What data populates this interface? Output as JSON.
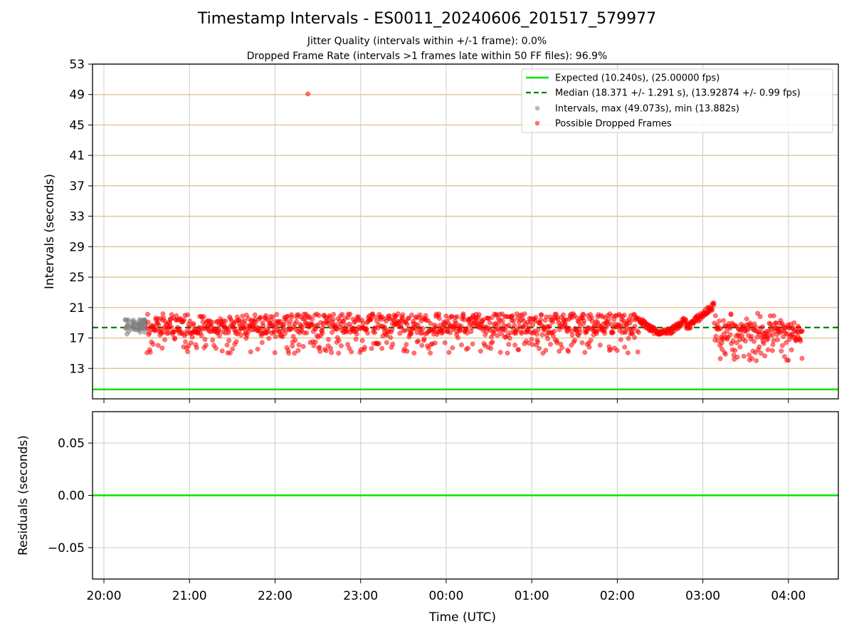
{
  "chart_data": [
    {
      "type": "scatter",
      "title": "Timestamp Intervals - ES0011_20240606_201517_579977",
      "subtitle_1": "Jitter Quality (intervals within +/-1 frame): 0.0%",
      "subtitle_2": "Dropped Frame Rate (intervals >1 frames late within 50 FF files): 96.9%",
      "ylabel": "Intervals (seconds)",
      "xlabel": "",
      "ylim": [
        9.0,
        53.0
      ],
      "yticks": [
        13,
        17,
        21,
        25,
        29,
        33,
        37,
        41,
        45,
        49,
        53
      ],
      "x_range_hours": [
        "19:52",
        "04:35"
      ],
      "x_ticks": [
        "20:00",
        "21:00",
        "22:00",
        "23:00",
        "00:00",
        "01:00",
        "02:00",
        "03:00",
        "04:00"
      ],
      "expected_interval": 10.24,
      "median_interval": 18.371,
      "legend_position": "top-right",
      "legend": [
        "Expected (10.240s), (25.00000 fps)",
        "Median (18.371 +/- 1.291 s), (13.92874 +/- 0.99 fps)",
        "Intervals, max (49.073s), min (13.882s)",
        "Possible Dropped Frames"
      ],
      "series": [
        {
          "name": "Intervals, max (49.073s), min (13.882s)",
          "color": "#808080",
          "time_range": [
            "20:15",
            "20:30"
          ],
          "value_range": [
            17.5,
            19.5
          ]
        },
        {
          "name": "Possible Dropped Frames",
          "color": "#ff0000",
          "segments": [
            {
              "time_range": [
                "20:30",
                "02:15"
              ],
              "typical": 18.5,
              "range": [
                15.0,
                20.5
              ]
            },
            {
              "time_range": [
                "02:15",
                "02:48"
              ],
              "typical": 18.0,
              "range": [
                17.5,
                20.0
              ]
            },
            {
              "time_range": [
                "02:48",
                "03:08"
              ],
              "typical": 20.0,
              "range": [
                18.5,
                21.8
              ]
            },
            {
              "time_range": [
                "03:08",
                "04:10"
              ],
              "typical": 17.0,
              "range": [
                14.0,
                20.3
              ]
            }
          ],
          "outlier": {
            "time": "22:23",
            "value": 49.073
          }
        }
      ],
      "grid": true,
      "colors": {
        "expected": "#00e600",
        "median": "#008000",
        "hgrid": "#d9be80",
        "vgrid": "#cccccc"
      }
    },
    {
      "type": "line",
      "ylabel": "Residuals (seconds)",
      "xlabel": "Time (UTC)",
      "ylim": [
        -0.08,
        0.08
      ],
      "yticks": [
        "0.05",
        "0.00",
        "−0.05"
      ],
      "yvalues": [
        0.05,
        0.0,
        -0.05
      ],
      "x_ticks": [
        "20:00",
        "21:00",
        "22:00",
        "23:00",
        "00:00",
        "01:00",
        "02:00",
        "03:00",
        "04:00"
      ],
      "series": [
        {
          "values_constant": 0.0,
          "color": "#00e600"
        }
      ],
      "grid": true
    }
  ]
}
